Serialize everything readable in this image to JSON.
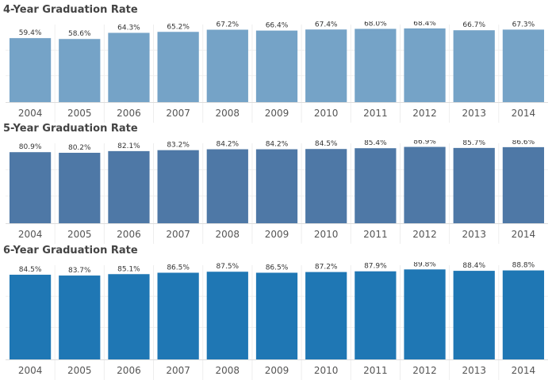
{
  "chart_data": [
    {
      "type": "bar",
      "title": "4-Year Graduation Rate",
      "categories": [
        "2004",
        "2005",
        "2006",
        "2007",
        "2008",
        "2009",
        "2010",
        "2011",
        "2012",
        "2013",
        "2014"
      ],
      "values": [
        59.4,
        58.6,
        64.3,
        65.2,
        67.2,
        66.4,
        67.4,
        68.0,
        68.4,
        66.7,
        67.3
      ],
      "labels": [
        "59.4%",
        "58.6%",
        "64.3%",
        "65.2%",
        "67.2%",
        "66.4%",
        "67.4%",
        "68.0%",
        "68.4%",
        "66.7%",
        "67.3%"
      ],
      "ylim": [
        0,
        72
      ],
      "color": "#75a3c7"
    },
    {
      "type": "bar",
      "title": "5-Year Graduation Rate",
      "categories": [
        "2004",
        "2005",
        "2006",
        "2007",
        "2008",
        "2009",
        "2010",
        "2011",
        "2012",
        "2013",
        "2014"
      ],
      "values": [
        80.9,
        80.2,
        82.1,
        83.2,
        84.2,
        84.2,
        84.5,
        85.4,
        86.9,
        85.7,
        86.6
      ],
      "labels": [
        "80.9%",
        "80.2%",
        "82.1%",
        "83.2%",
        "84.2%",
        "84.2%",
        "84.5%",
        "85.4%",
        "86.9%",
        "85.7%",
        "86.6%"
      ],
      "ylim": [
        0,
        91
      ],
      "color": "#4e78a6"
    },
    {
      "type": "bar",
      "title": "6-Year Graduation Rate",
      "categories": [
        "2004",
        "2005",
        "2006",
        "2007",
        "2008",
        "2009",
        "2010",
        "2011",
        "2012",
        "2013",
        "2014"
      ],
      "values": [
        84.5,
        83.7,
        85.1,
        86.5,
        87.5,
        86.5,
        87.2,
        87.9,
        89.8,
        88.4,
        88.8
      ],
      "labels": [
        "84.5%",
        "83.7%",
        "85.1%",
        "86.5%",
        "87.5%",
        "86.5%",
        "87.2%",
        "87.9%",
        "89.8%",
        "88.4%",
        "88.8%"
      ],
      "ylim": [
        0,
        94
      ],
      "color": "#1f77b4"
    }
  ]
}
